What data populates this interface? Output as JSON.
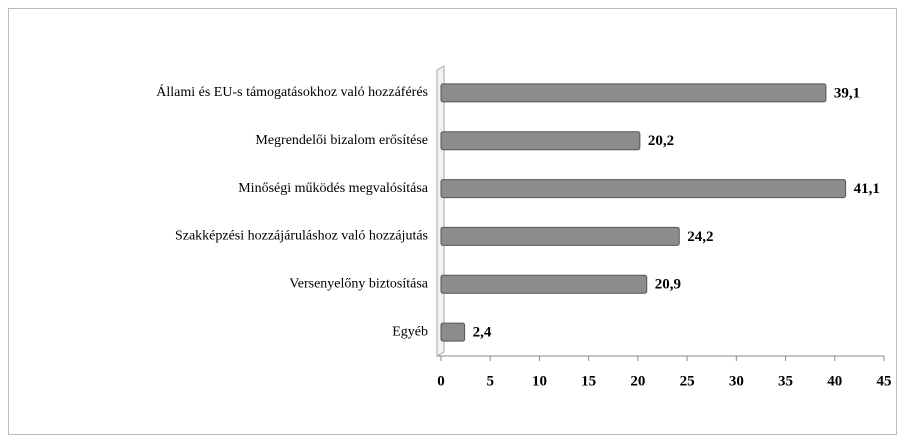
{
  "chart_data": {
    "type": "barh",
    "categories": [
      "Állami és EU-s támogatásokhoz való hozzáférés",
      "Megrendelői bizalom erősítése",
      "Minőségi működés megvalósítása",
      "Szakképzési hozzájáruláshoz való hozzájutás",
      "Versenyelőny biztosítása",
      "Egyéb"
    ],
    "values": [
      39.1,
      20.2,
      41.1,
      24.2,
      20.9,
      2.4
    ],
    "value_labels": [
      "39,1",
      "20,2",
      "41,1",
      "24,2",
      "20,9",
      "2,4"
    ],
    "color": "#8c8c8c",
    "xlim": [
      0,
      45
    ],
    "xticks": [
      0,
      5,
      10,
      15,
      20,
      25,
      30,
      35,
      40,
      45
    ]
  }
}
